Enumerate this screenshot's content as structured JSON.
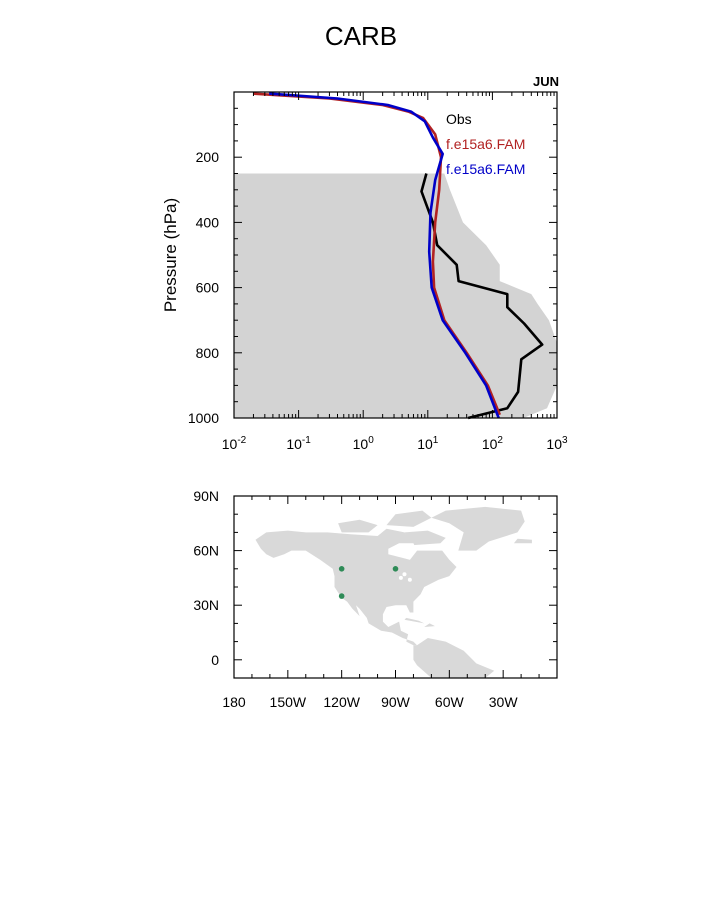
{
  "page": {
    "title": "CARB"
  },
  "colors": {
    "obs": "#000000",
    "model1": "#b22222",
    "model2": "#0000c8",
    "range_fill": "#d3d3d3",
    "land": "#d9d9d9",
    "site": "#2e8b57"
  },
  "chart_data": [
    {
      "type": "line",
      "title": "CARB",
      "month_label": "JUN",
      "xlabel": "",
      "ylabel": "Pressure (hPa)",
      "xscale": "log",
      "xlim": [
        0.01,
        1000
      ],
      "ylim": [
        1000,
        0
      ],
      "x_ticks": [
        {
          "value": 0.01,
          "base": "10",
          "exp": "-2"
        },
        {
          "value": 0.1,
          "base": "10",
          "exp": "-1"
        },
        {
          "value": 1,
          "base": "10",
          "exp": "0"
        },
        {
          "value": 10,
          "base": "10",
          "exp": "1"
        },
        {
          "value": 100,
          "base": "10",
          "exp": "2"
        },
        {
          "value": 1000,
          "base": "10",
          "exp": "3"
        }
      ],
      "y_ticks": [
        "200",
        "400",
        "600",
        "800",
        "1000"
      ],
      "legend_position": "top-right",
      "series": [
        {
          "name": "Obs",
          "color": "#000000",
          "x": [
            9.5,
            8,
            12,
            14,
            28,
            30,
            170,
            170,
            310,
            590,
            280,
            250,
            170,
            42
          ],
          "y": [
            250,
            305,
            400,
            470,
            530,
            580,
            620,
            660,
            710,
            775,
            820,
            920,
            970,
            1000
          ]
        },
        {
          "name": "f.e15a6.FAM",
          "color": "#b22222",
          "x": [
            0.02,
            0.3,
            2,
            5,
            8.5,
            13,
            16,
            15,
            13,
            12,
            12.5,
            18,
            40,
            85,
            130
          ],
          "y": [
            5,
            20,
            40,
            60,
            80,
            130,
            200,
            300,
            400,
            520,
            600,
            700,
            800,
            900,
            990
          ]
        },
        {
          "name": "f.e15a6.FAM",
          "color": "#0000c8",
          "x": [
            0.035,
            0.4,
            2.4,
            5.5,
            9,
            12,
            17,
            13,
            11,
            10.5,
            11.5,
            17,
            38,
            80,
            125
          ],
          "y": [
            5,
            20,
            40,
            60,
            90,
            140,
            190,
            270,
            370,
            490,
            600,
            700,
            800,
            900,
            1000
          ]
        }
      ],
      "range_band": {
        "name": "Obs range",
        "color": "#d3d3d3",
        "y": [
          250,
          300,
          400,
          470,
          530,
          580,
          620,
          650,
          700,
          770,
          820,
          900,
          970,
          1000
        ],
        "x_low": [
          0.01,
          0.01,
          0.01,
          0.01,
          0.01,
          0.01,
          0.01,
          0.01,
          0.01,
          0.01,
          0.01,
          0.01,
          0.01,
          0.01
        ],
        "x_high": [
          18,
          22,
          35,
          80,
          130,
          130,
          400,
          500,
          750,
          1000,
          1000,
          1000,
          700,
          300
        ]
      }
    },
    {
      "type": "scatter",
      "title": "",
      "xlabel": "",
      "ylabel": "",
      "xlim": [
        -180,
        0
      ],
      "ylim": [
        -10,
        90
      ],
      "x_ticks": [
        {
          "value": -180,
          "label": "180"
        },
        {
          "value": -150,
          "label": "150W"
        },
        {
          "value": -120,
          "label": "120W"
        },
        {
          "value": -90,
          "label": "90W"
        },
        {
          "value": -60,
          "label": "60W"
        },
        {
          "value": -30,
          "label": "30W"
        }
      ],
      "y_ticks": [
        {
          "value": 90,
          "label": "90N"
        },
        {
          "value": 60,
          "label": "60N"
        },
        {
          "value": 30,
          "label": "30N"
        },
        {
          "value": 0,
          "label": "0"
        }
      ],
      "series": [
        {
          "name": "",
          "color": "#2e8b57",
          "x": [
            -120,
            -90,
            -120
          ],
          "y": [
            50,
            50,
            35
          ]
        }
      ]
    }
  ]
}
